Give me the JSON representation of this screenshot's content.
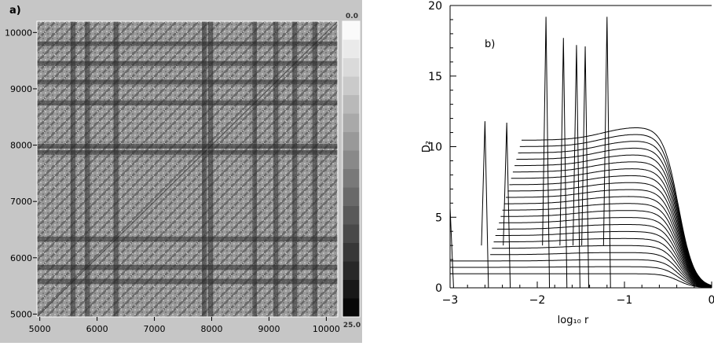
{
  "chart_data": [
    {
      "type": "heatmap",
      "panel_label": "a)",
      "x_ticks": [
        5000,
        6000,
        7000,
        8000,
        9000,
        10000
      ],
      "y_ticks": [
        5000,
        6000,
        7000,
        8000,
        9000,
        10000
      ],
      "xlim": [
        4950,
        10200
      ],
      "ylim": [
        4950,
        10200
      ],
      "colorbar": {
        "min": 0.0,
        "max": 25.0,
        "min_label": "0.0",
        "max_label": "25.0",
        "levels": 16,
        "colormap": "white-to-black"
      },
      "dark_bands": [
        5580,
        5830,
        6330,
        7870,
        7980,
        8750,
        9120,
        9450,
        9800
      ],
      "colors": {
        "frame": "#c6c6c6",
        "axis_text": "#000000"
      }
    },
    {
      "type": "line",
      "panel_label": "b)",
      "xlabel": "log₁₀ r",
      "ylabel": "D₂",
      "xlim": [
        -3,
        0
      ],
      "ylim": [
        0,
        20
      ],
      "x_ticks": [
        -3,
        -2,
        -1,
        0
      ],
      "x_tick_labels": [
        "−3",
        "−2",
        "−1",
        "0"
      ],
      "y_ticks": [
        0,
        5,
        10,
        15,
        20
      ],
      "y_tick_labels": [
        "0",
        "5",
        "10",
        "15",
        "20"
      ],
      "family": {
        "count": 22,
        "plateau_start": 1,
        "plateau_step": 0.45,
        "peak_start": 1.0,
        "peak_step": 0.5,
        "peak_x_first": -1.45,
        "peak_x_last": -0.9,
        "falloff_center": -0.38,
        "falloff_width": 0.09
      },
      "noisy_spikes": [
        {
          "x": -2.6,
          "y": 11.8
        },
        {
          "x": -2.35,
          "y": 11.7
        },
        {
          "x": -1.9,
          "y": 19.2
        },
        {
          "x": -1.7,
          "y": 17.7
        },
        {
          "x": -1.55,
          "y": 17.2
        },
        {
          "x": -1.45,
          "y": 17.1
        },
        {
          "x": -1.2,
          "y": 19.2
        },
        {
          "x": -3.0,
          "y": 5.7
        }
      ],
      "colors": {
        "line": "#000000"
      }
    }
  ]
}
